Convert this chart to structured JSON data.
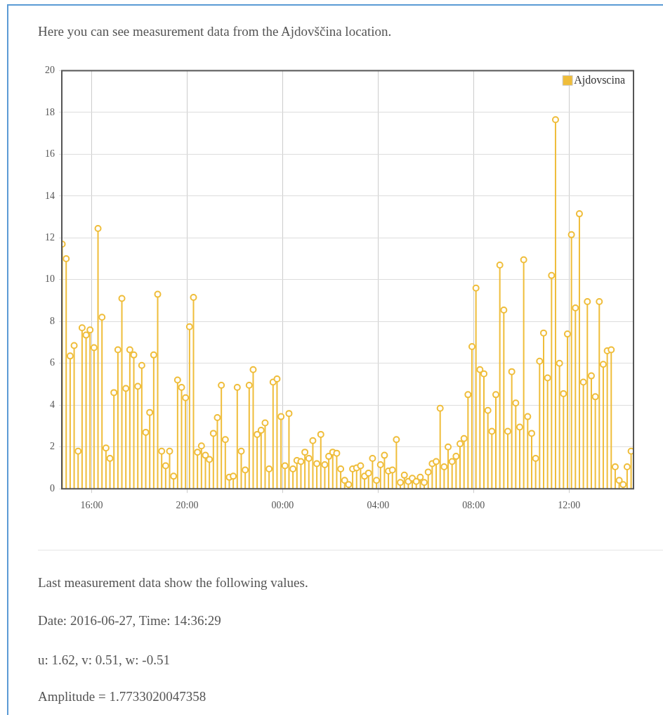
{
  "chart_data": {
    "type": "lollipop",
    "title": "Here you can see measurement data from the Ajdovščina location.",
    "annotations": [
      "Last measurement data show the following values.",
      "Date: 2016-06-27, Time: 14:36:29",
      "u: 1.62, v: 0.51, w: -0.51",
      "Amplitude = 1.7733020047358"
    ],
    "x": [
      "2016-06-26T14:46",
      "2016-06-26T14:56",
      "2016-06-26T15:06",
      "2016-06-26T15:16",
      "2016-06-26T15:26",
      "2016-06-26T15:36",
      "2016-06-26T15:46",
      "2016-06-26T15:56",
      "2016-06-26T16:06",
      "2016-06-26T16:16",
      "2016-06-26T16:26",
      "2016-06-26T16:36",
      "2016-06-26T16:46",
      "2016-06-26T16:56",
      "2016-06-26T17:06",
      "2016-06-26T17:16",
      "2016-06-26T17:26",
      "2016-06-26T17:36",
      "2016-06-26T17:46",
      "2016-06-26T17:56",
      "2016-06-26T18:06",
      "2016-06-26T18:16",
      "2016-06-26T18:26",
      "2016-06-26T18:36",
      "2016-06-26T18:46",
      "2016-06-26T18:56",
      "2016-06-26T19:06",
      "2016-06-26T19:16",
      "2016-06-26T19:26",
      "2016-06-26T19:36",
      "2016-06-26T19:46",
      "2016-06-26T19:56",
      "2016-06-26T20:06",
      "2016-06-26T20:16",
      "2016-06-26T20:26",
      "2016-06-26T20:36",
      "2016-06-26T20:46",
      "2016-06-26T20:56",
      "2016-06-26T21:06",
      "2016-06-26T21:16",
      "2016-06-26T21:26",
      "2016-06-26T21:36",
      "2016-06-26T21:46",
      "2016-06-26T21:56",
      "2016-06-26T22:06",
      "2016-06-26T22:16",
      "2016-06-26T22:26",
      "2016-06-26T22:36",
      "2016-06-26T22:46",
      "2016-06-26T22:56",
      "2016-06-26T23:06",
      "2016-06-26T23:16",
      "2016-06-26T23:26",
      "2016-06-26T23:36",
      "2016-06-26T23:46",
      "2016-06-26T23:56",
      "2016-06-27T00:06",
      "2016-06-27T00:16",
      "2016-06-27T00:26",
      "2016-06-27T00:36",
      "2016-06-27T00:46",
      "2016-06-27T00:56",
      "2016-06-27T01:06",
      "2016-06-27T01:16",
      "2016-06-27T01:26",
      "2016-06-27T01:36",
      "2016-06-27T01:46",
      "2016-06-27T01:56",
      "2016-06-27T02:06",
      "2016-06-27T02:16",
      "2016-06-27T02:26",
      "2016-06-27T02:36",
      "2016-06-27T02:46",
      "2016-06-27T02:56",
      "2016-06-27T03:06",
      "2016-06-27T03:16",
      "2016-06-27T03:26",
      "2016-06-27T03:36",
      "2016-06-27T03:46",
      "2016-06-27T03:56",
      "2016-06-27T04:06",
      "2016-06-27T04:16",
      "2016-06-27T04:26",
      "2016-06-27T04:36",
      "2016-06-27T04:46",
      "2016-06-27T04:56",
      "2016-06-27T05:06",
      "2016-06-27T05:16",
      "2016-06-27T05:26",
      "2016-06-27T05:36",
      "2016-06-27T05:46",
      "2016-06-27T05:56",
      "2016-06-27T06:06",
      "2016-06-27T06:16",
      "2016-06-27T06:26",
      "2016-06-27T06:36",
      "2016-06-27T06:46",
      "2016-06-27T06:56",
      "2016-06-27T07:06",
      "2016-06-27T07:16",
      "2016-06-27T07:26",
      "2016-06-27T07:36",
      "2016-06-27T07:46",
      "2016-06-27T07:56",
      "2016-06-27T08:06",
      "2016-06-27T08:16",
      "2016-06-27T08:26",
      "2016-06-27T08:36",
      "2016-06-27T08:46",
      "2016-06-27T08:56",
      "2016-06-27T09:06",
      "2016-06-27T09:16",
      "2016-06-27T09:26",
      "2016-06-27T09:36",
      "2016-06-27T09:46",
      "2016-06-27T09:56",
      "2016-06-27T10:06",
      "2016-06-27T10:16",
      "2016-06-27T10:26",
      "2016-06-27T10:36",
      "2016-06-27T10:46",
      "2016-06-27T10:56",
      "2016-06-27T11:06",
      "2016-06-27T11:16",
      "2016-06-27T11:26",
      "2016-06-27T11:36",
      "2016-06-27T11:46",
      "2016-06-27T11:56",
      "2016-06-27T12:06",
      "2016-06-27T12:16",
      "2016-06-27T12:26",
      "2016-06-27T12:36",
      "2016-06-27T12:46",
      "2016-06-27T12:56",
      "2016-06-27T13:06",
      "2016-06-27T13:16",
      "2016-06-27T13:26",
      "2016-06-27T13:36",
      "2016-06-27T13:46",
      "2016-06-27T13:56",
      "2016-06-27T14:06",
      "2016-06-27T14:16",
      "2016-06-27T14:26",
      "2016-06-27T14:36"
    ],
    "series": [
      {
        "name": "Ajdovscina",
        "color": "#efbd3a",
        "values": [
          11.7,
          11.0,
          6.35,
          6.85,
          1.8,
          7.7,
          7.35,
          7.6,
          6.75,
          12.45,
          8.2,
          1.95,
          1.45,
          4.6,
          6.65,
          9.1,
          4.8,
          6.65,
          6.4,
          4.9,
          5.9,
          2.7,
          3.65,
          6.4,
          9.3,
          1.8,
          1.1,
          1.8,
          0.6,
          5.2,
          4.85,
          4.35,
          7.75,
          9.15,
          1.75,
          2.05,
          1.6,
          1.4,
          2.65,
          3.4,
          4.95,
          2.35,
          0.55,
          0.6,
          4.85,
          1.8,
          0.9,
          4.95,
          5.7,
          2.6,
          2.8,
          3.15,
          0.95,
          5.1,
          5.25,
          3.45,
          1.1,
          3.6,
          0.95,
          1.35,
          1.3,
          1.75,
          1.45,
          2.3,
          1.2,
          2.6,
          1.15,
          1.55,
          1.75,
          1.7,
          0.95,
          0.4,
          0.2,
          0.95,
          1.0,
          1.1,
          0.6,
          0.75,
          1.45,
          0.4,
          1.15,
          1.6,
          0.85,
          0.9,
          2.35,
          0.3,
          0.65,
          0.35,
          0.5,
          0.35,
          0.55,
          0.3,
          0.8,
          1.2,
          1.3,
          3.85,
          1.05,
          2.0,
          1.3,
          1.55,
          2.15,
          2.4,
          4.5,
          6.8,
          9.6,
          5.7,
          5.5,
          3.75,
          2.75,
          4.5,
          10.7,
          8.55,
          2.75,
          5.6,
          4.1,
          2.95,
          10.95,
          3.45,
          2.65,
          1.45,
          6.1,
          7.45,
          5.3,
          10.2,
          17.65,
          6.0,
          4.55,
          7.4,
          12.15,
          8.65,
          13.15,
          5.1,
          8.95,
          5.4,
          4.4,
          8.95,
          5.95,
          6.6,
          6.65,
          1.05,
          0.4,
          0.2,
          1.05,
          1.8
        ]
      }
    ],
    "xlim": [
      "2016-06-26T14:45",
      "2016-06-27T14:42"
    ],
    "xticks": [
      {
        "value": "2016-06-26T16:00",
        "label": "16:00"
      },
      {
        "value": "2016-06-26T20:00",
        "label": "20:00"
      },
      {
        "value": "2016-06-27T00:00",
        "label": "00:00"
      },
      {
        "value": "2016-06-27T04:00",
        "label": "04:00"
      },
      {
        "value": "2016-06-27T08:00",
        "label": "08:00"
      },
      {
        "value": "2016-06-27T12:00",
        "label": "12:00"
      }
    ],
    "ylim": [
      0,
      20
    ],
    "yticks": [
      0,
      2,
      4,
      6,
      8,
      10,
      12,
      14,
      16,
      18,
      20
    ],
    "grid": true,
    "legend": "top right",
    "marker": "circle"
  }
}
